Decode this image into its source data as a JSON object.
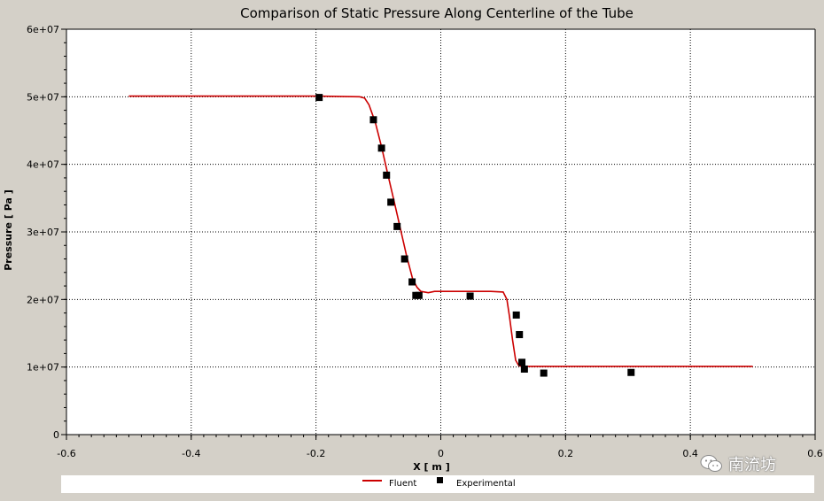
{
  "chart_data": {
    "type": "line",
    "title": "Comparison of Static Pressure Along Centerline of the Tube",
    "xlabel": "X [ m ]",
    "ylabel": "Pressure [ Pa ]",
    "xlim": [
      -0.6,
      0.6
    ],
    "ylim": [
      0,
      60000000
    ],
    "x_ticks": [
      "-0.6",
      "-0.4",
      "-0.2",
      "0",
      "0.2",
      "0.4",
      "0.6"
    ],
    "x_tick_values": [
      -0.6,
      -0.4,
      -0.2,
      0,
      0.2,
      0.4,
      0.6
    ],
    "y_ticks": [
      "0",
      "1e+07",
      "2e+07",
      "3e+07",
      "4e+07",
      "5e+07",
      "6e+07"
    ],
    "y_tick_values": [
      0,
      10000000,
      20000000,
      30000000,
      40000000,
      50000000,
      60000000
    ],
    "grid": true,
    "legend_position": "bottom",
    "series": [
      {
        "name": "Fluent",
        "style": "line",
        "color": "#cc0000",
        "x": [
          -0.5,
          -0.2,
          -0.13,
          -0.122,
          -0.115,
          -0.105,
          -0.095,
          -0.085,
          -0.075,
          -0.065,
          -0.055,
          -0.045,
          -0.038,
          -0.032,
          -0.02,
          -0.01,
          0.0,
          0.02,
          0.05,
          0.08,
          0.1,
          0.106,
          0.11,
          0.115,
          0.12,
          0.125,
          0.13,
          0.2,
          0.3,
          0.4,
          0.5
        ],
        "y": [
          50100000,
          50100000,
          50000000,
          49800000,
          48800000,
          46200000,
          42600000,
          38600000,
          34600000,
          30600000,
          26500000,
          23000000,
          21800000,
          21200000,
          21000000,
          21200000,
          21200000,
          21200000,
          21200000,
          21200000,
          21100000,
          20000000,
          17500000,
          14000000,
          11000000,
          10200000,
          10100000,
          10100000,
          10100000,
          10100000,
          10100000
        ]
      },
      {
        "name": "Experimental",
        "style": "scatter",
        "color": "#000000",
        "x": [
          -0.195,
          -0.108,
          -0.095,
          -0.087,
          -0.08,
          -0.07,
          -0.058,
          -0.046,
          -0.04,
          -0.035,
          0.047,
          0.121,
          0.126,
          0.13,
          0.134,
          0.165,
          0.305
        ],
        "y": [
          49900000,
          46600000,
          42400000,
          38400000,
          34400000,
          30800000,
          26000000,
          22600000,
          20600000,
          20600000,
          20500000,
          17700000,
          14800000,
          10700000,
          9700000,
          9100000,
          9200000
        ]
      }
    ]
  },
  "watermark": {
    "text": "南流坊",
    "icon": "wechat-icon"
  }
}
